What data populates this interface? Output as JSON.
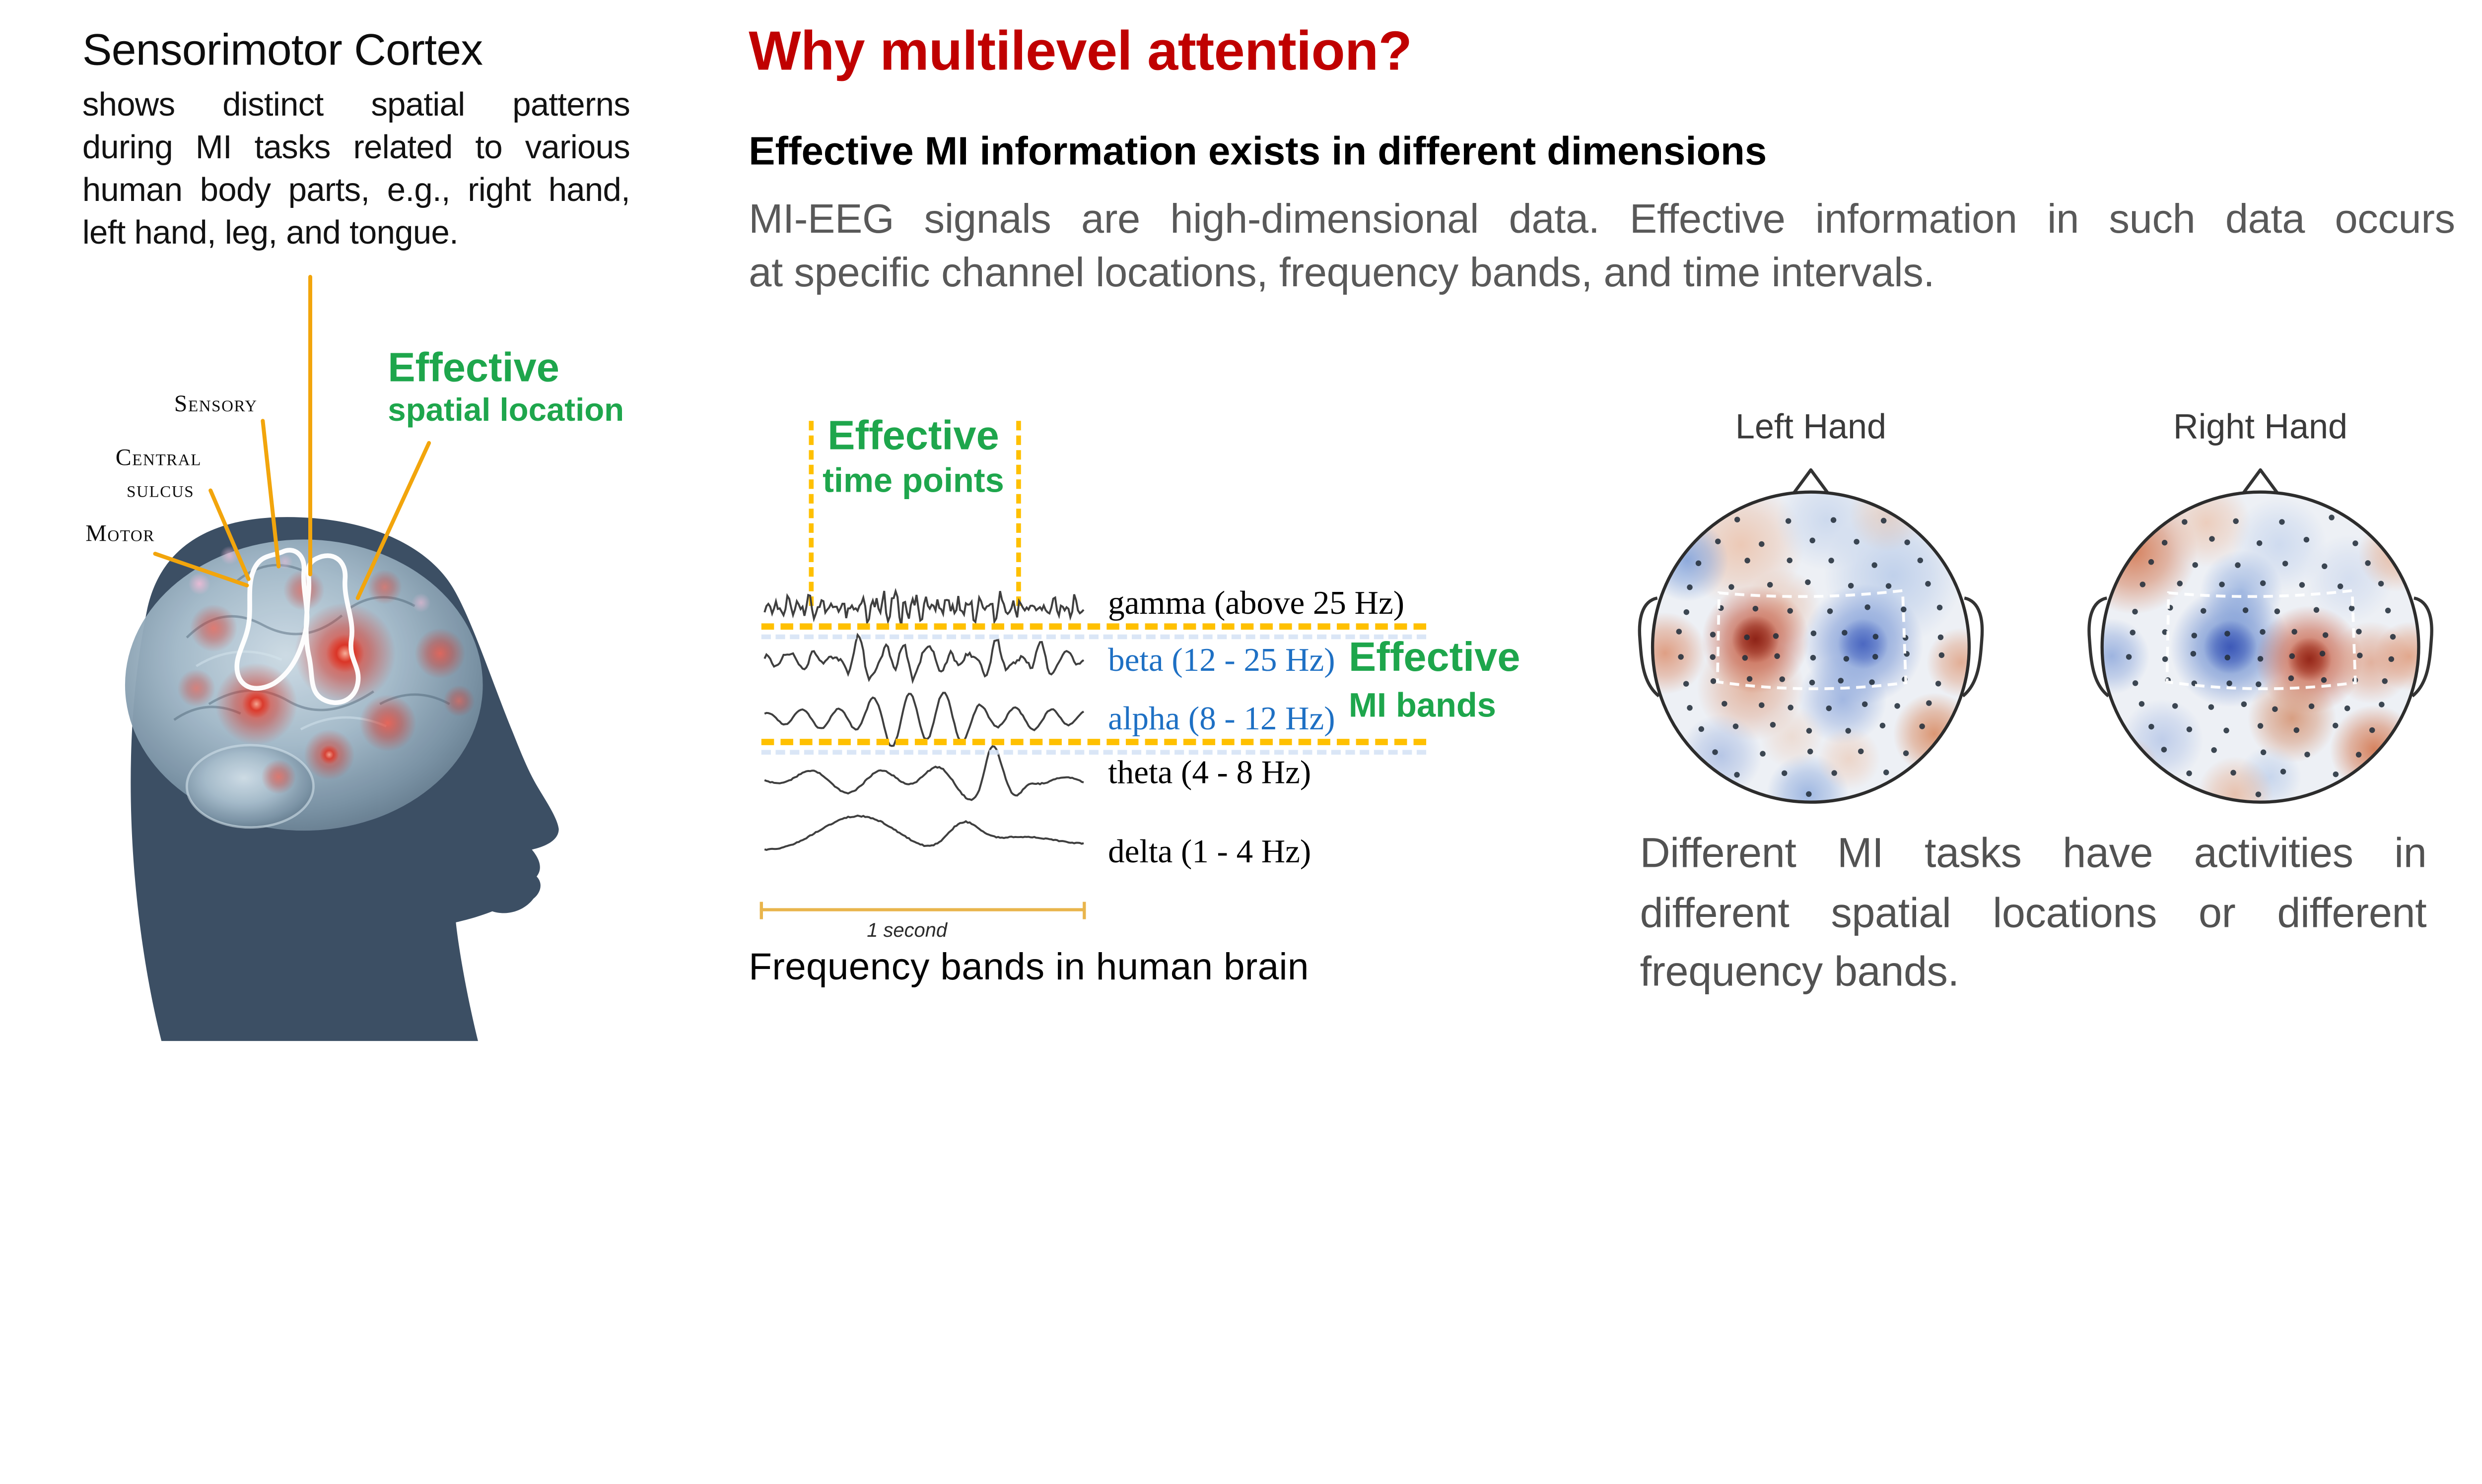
{
  "colors": {
    "heading_red": "#c00000",
    "accent_green": "#1ea64c",
    "band_blue": "#1e70c4",
    "body_gray": "#595959",
    "callout_orange": "#f2a50c",
    "dash_yellow": "#ffc000",
    "silhouette_navy": "#3c4f64"
  },
  "left_panel": {
    "title": "Sensorimotor Cortex",
    "body_lines": [
      "shows distinct spatial patterns",
      "during MI tasks related to various",
      "human body parts, e.g., right hand,",
      "left hand, leg, and tongue."
    ],
    "brain_labels": {
      "sensory": "Sensory",
      "central": "Central",
      "sulcus": "sulcus",
      "motor": "Motor"
    },
    "annotation": {
      "title": "Effective",
      "subtitle": "spatial location"
    }
  },
  "center_panel": {
    "heading": "Why multilevel attention?",
    "subheading": "Effective MI information exists in different dimensions",
    "body_lines": [
      "MI-EEG signals are high-dimensional data. Effective information in such data occurs",
      "at specific channel locations, frequency bands, and time intervals."
    ],
    "time_annotation": {
      "title": "Effective",
      "subtitle": "time points"
    },
    "band_annotation": {
      "title": "Effective",
      "subtitle": "MI bands"
    },
    "bands": [
      {
        "label": "gamma (above 25 Hz)",
        "color": "#000000"
      },
      {
        "label": "beta (12 - 25 Hz)",
        "color": "#1e70c4"
      },
      {
        "label": "alpha (8 - 12 Hz)",
        "color": "#1e70c4"
      },
      {
        "label": "theta (4 - 8 Hz)",
        "color": "#000000"
      },
      {
        "label": "delta (1 - 4 Hz)",
        "color": "#000000"
      }
    ],
    "scale_label": "1 second",
    "caption": "Frequency bands in human brain"
  },
  "right_panel": {
    "maps": [
      {
        "title": "Left Hand"
      },
      {
        "title": "Right Hand"
      }
    ],
    "caption_lines": [
      "Different MI tasks have activities in",
      "different spatial locations or different",
      "frequency bands."
    ]
  }
}
